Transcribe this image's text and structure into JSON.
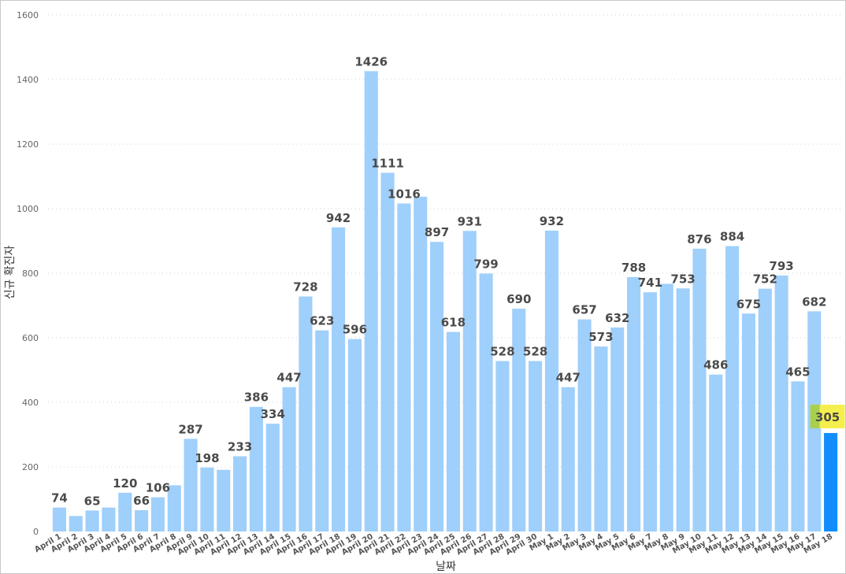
{
  "chart_data": {
    "type": "bar",
    "title": "",
    "xlabel": "날짜",
    "ylabel": "신규 확진자",
    "ylim": [
      0,
      1600
    ],
    "yticks": [
      0,
      200,
      400,
      600,
      800,
      1000,
      1200,
      1400,
      1600
    ],
    "grid": true,
    "colors": {
      "bar": "#9fcffb",
      "highlight": "#118dff",
      "label_box": "#f5ef4e",
      "label_box_left": "#a9cf4e"
    },
    "categories": [
      "April 1",
      "April 2",
      "April 3",
      "April 4",
      "April 5",
      "April 6",
      "April 7",
      "April 8",
      "April 9",
      "April 10",
      "April 11",
      "April 12",
      "April 13",
      "April 14",
      "April 15",
      "April 16",
      "April 17",
      "April 18",
      "April 19",
      "April 20",
      "April 21",
      "April 22",
      "April 23",
      "April 24",
      "April 25",
      "April 26",
      "April 27",
      "April 28",
      "April 29",
      "April 30",
      "May 1",
      "May 2",
      "May 3",
      "May 4",
      "May 5",
      "May 6",
      "May 7",
      "May 8",
      "May 9",
      "May 10",
      "May 11",
      "May 12",
      "May 13",
      "May 14",
      "May 15",
      "May 16",
      "May 17",
      "May 18"
    ],
    "values": [
      74,
      48,
      65,
      74,
      120,
      66,
      106,
      143,
      287,
      198,
      191,
      233,
      386,
      334,
      447,
      728,
      623,
      942,
      596,
      1426,
      1111,
      1016,
      1037,
      897,
      618,
      931,
      799,
      528,
      690,
      528,
      932,
      447,
      657,
      573,
      632,
      788,
      741,
      767,
      753,
      876,
      486,
      884,
      675,
      752,
      793,
      465,
      682,
      305
    ],
    "data_labels": [
      "74",
      "",
      "65",
      "",
      "120",
      "66",
      "106",
      "",
      "287",
      "198",
      "",
      "233",
      "386",
      "334",
      "447",
      "728",
      "623",
      "942",
      "596",
      "1426",
      "1111",
      "1016",
      "",
      "897",
      "618",
      "931",
      "799",
      "528",
      "690",
      "528",
      "932",
      "447",
      "657",
      "573",
      "632",
      "788",
      "741",
      "",
      "753",
      "876",
      "486",
      "884",
      "675",
      "752",
      "793",
      "465",
      "682",
      "305"
    ],
    "highlight_index": 47
  }
}
